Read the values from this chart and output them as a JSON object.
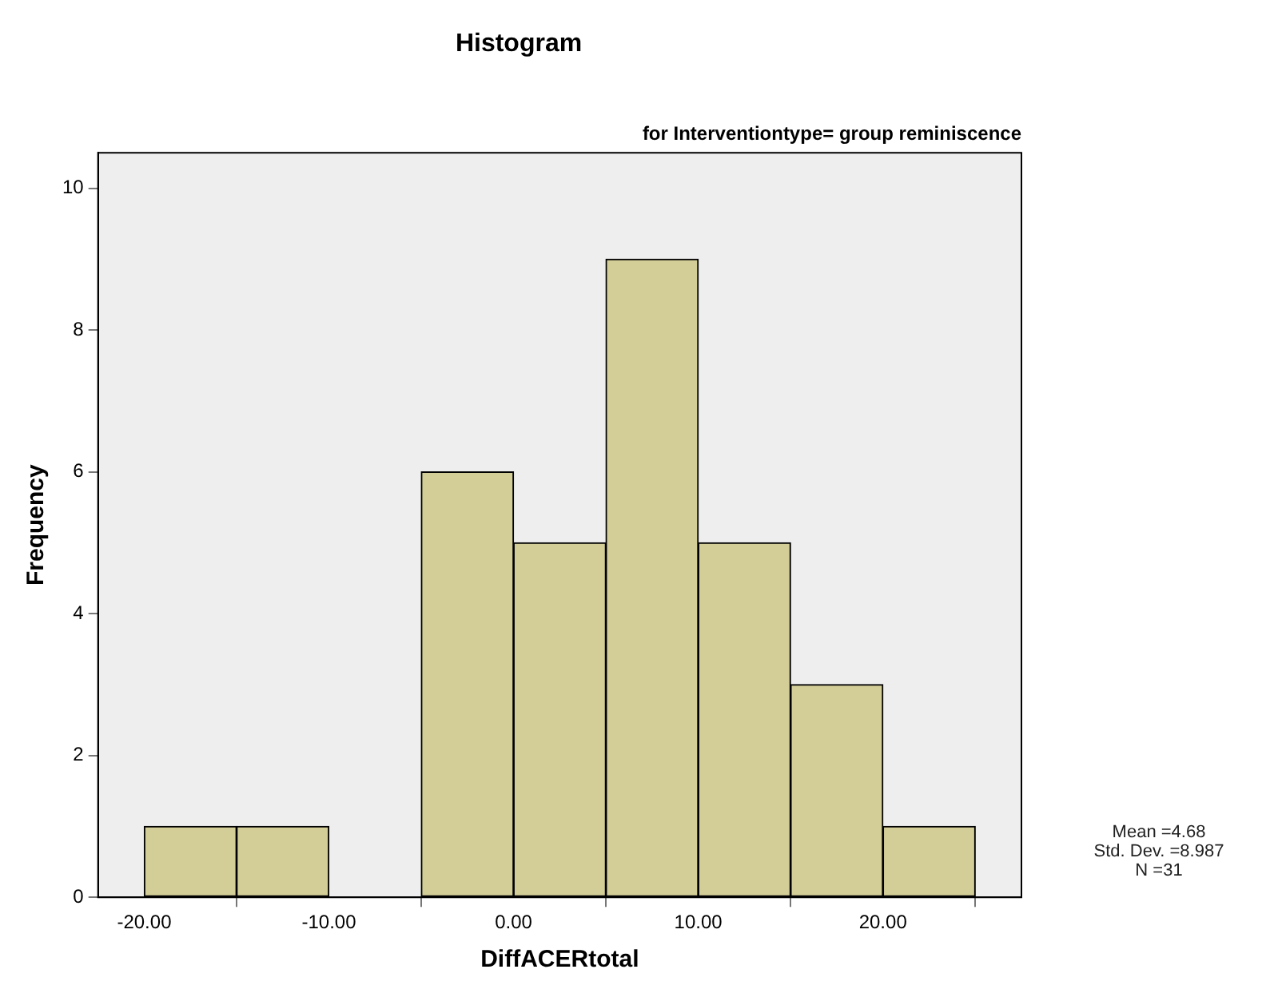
{
  "chart_data": {
    "type": "histogram",
    "title": "Histogram",
    "subtitle": "for Interventiontype= group reminiscence",
    "xlabel": "DiffACERtotal",
    "ylabel": "Frequency",
    "bins": [
      -20,
      -15,
      -10,
      -5,
      0,
      5,
      10,
      15,
      20,
      25
    ],
    "values": [
      1,
      1,
      0,
      6,
      5,
      9,
      5,
      3,
      1
    ],
    "color": "#d3ce97",
    "xlim": [
      -22.5,
      27.5
    ],
    "xticks": [
      {
        "value": -20,
        "label": "-20.00"
      },
      {
        "value": -10,
        "label": "-10.00"
      },
      {
        "value": 0,
        "label": "0.00"
      },
      {
        "value": 10,
        "label": "10.00"
      },
      {
        "value": 20,
        "label": "20.00"
      }
    ],
    "ylim": [
      0,
      10.5
    ],
    "yticks": [
      0,
      2,
      4,
      6,
      8,
      10
    ],
    "grid": false,
    "legend": false,
    "annotations": [
      "Mean =4.68",
      "Std. Dev. =8.987",
      "N =31"
    ]
  }
}
